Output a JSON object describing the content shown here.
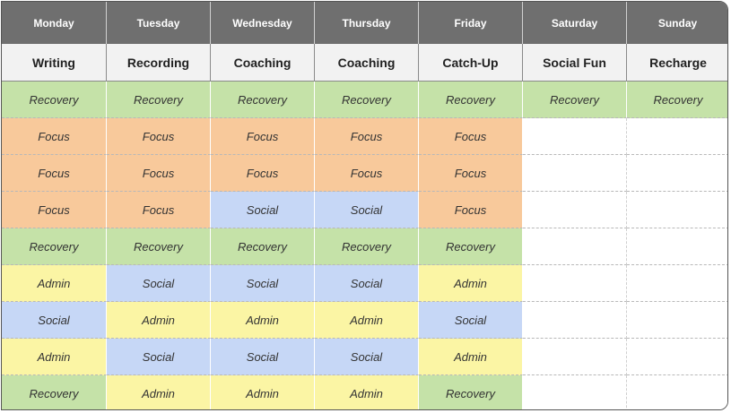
{
  "schedule": {
    "days": [
      {
        "name": "Monday",
        "theme": "Writing"
      },
      {
        "name": "Tuesday",
        "theme": "Recording"
      },
      {
        "name": "Wednesday",
        "theme": "Coaching"
      },
      {
        "name": "Thursday",
        "theme": "Coaching"
      },
      {
        "name": "Friday",
        "theme": "Catch-Up"
      },
      {
        "name": "Saturday",
        "theme": "Social Fun"
      },
      {
        "name": "Sunday",
        "theme": "Recharge"
      }
    ],
    "rows": [
      [
        "Recovery",
        "Recovery",
        "Recovery",
        "Recovery",
        "Recovery",
        "Recovery",
        "Recovery"
      ],
      [
        "Focus",
        "Focus",
        "Focus",
        "Focus",
        "Focus",
        "",
        ""
      ],
      [
        "Focus",
        "Focus",
        "Focus",
        "Focus",
        "Focus",
        "",
        ""
      ],
      [
        "Focus",
        "Focus",
        "Social",
        "Social",
        "Focus",
        "",
        ""
      ],
      [
        "Recovery",
        "Recovery",
        "Recovery",
        "Recovery",
        "Recovery",
        "",
        ""
      ],
      [
        "Admin",
        "Social",
        "Social",
        "Social",
        "Admin",
        "",
        ""
      ],
      [
        "Social",
        "Admin",
        "Admin",
        "Admin",
        "Social",
        "",
        ""
      ],
      [
        "Admin",
        "Social",
        "Social",
        "Social",
        "Admin",
        "",
        ""
      ],
      [
        "Recovery",
        "Admin",
        "Admin",
        "Admin",
        "Recovery",
        "",
        ""
      ]
    ],
    "colors": {
      "Recovery": "#c5e2a8",
      "Focus": "#f8c99b",
      "Social": "#c6d7f6",
      "Admin": "#fbf5a4",
      "header": "#6f6f6f"
    }
  }
}
